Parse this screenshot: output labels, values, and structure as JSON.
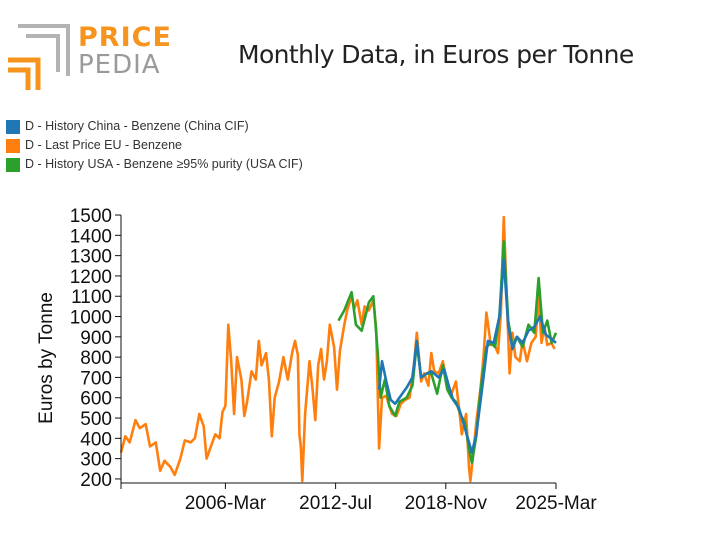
{
  "logo": {
    "word1": "PRICE",
    "word2": "PEDIA",
    "icon": "pricepedia-logo-icon"
  },
  "title": "Monthly Data, in Euros per Tonne",
  "colors": {
    "china": "#1f77b4",
    "eu": "#ff7f0e",
    "usa": "#2ca02c",
    "logo_orange": "#f7941d",
    "logo_gray": "#b3b3b3"
  },
  "legend": [
    {
      "label": "D - History China - Benzene (China CIF)",
      "color": "#1f77b4"
    },
    {
      "label": "D - Last Price EU - Benzene",
      "color": "#ff7f0e"
    },
    {
      "label": "D - History USA - Benzene ≥95% purity (USA CIF)",
      "color": "#2ca02c"
    }
  ],
  "chart_data": {
    "type": "line",
    "ylabel": "Euros by Tonne",
    "xlabel": "",
    "ylim": [
      180,
      1510
    ],
    "xlim": [
      "2000-03",
      "2025-03"
    ],
    "x_ticks": [
      "2006-Mar",
      "2012-Jul",
      "2018-Nov",
      "2025-Mar"
    ],
    "y_ticks": [
      200,
      300,
      400,
      500,
      600,
      700,
      800,
      900,
      1000,
      1100,
      1200,
      1300,
      1400,
      1500
    ],
    "grid": false,
    "legend_position": "top-left",
    "series": [
      {
        "name": "D - Last Price EU - Benzene",
        "color": "#ff7f0e",
        "points": [
          [
            "2000-03",
            330
          ],
          [
            "2000-06",
            410
          ],
          [
            "2000-09",
            380
          ],
          [
            "2001-01",
            490
          ],
          [
            "2001-04",
            450
          ],
          [
            "2001-08",
            470
          ],
          [
            "2001-11",
            360
          ],
          [
            "2002-03",
            380
          ],
          [
            "2002-06",
            240
          ],
          [
            "2002-09",
            290
          ],
          [
            "2003-01",
            260
          ],
          [
            "2003-04",
            220
          ],
          [
            "2003-08",
            300
          ],
          [
            "2003-11",
            390
          ],
          [
            "2004-03",
            380
          ],
          [
            "2004-06",
            400
          ],
          [
            "2004-09",
            520
          ],
          [
            "2004-12",
            460
          ],
          [
            "2005-02",
            300
          ],
          [
            "2005-05",
            360
          ],
          [
            "2005-08",
            420
          ],
          [
            "2005-11",
            400
          ],
          [
            "2006-01",
            530
          ],
          [
            "2006-03",
            560
          ],
          [
            "2006-05",
            960
          ],
          [
            "2006-07",
            780
          ],
          [
            "2006-09",
            520
          ],
          [
            "2006-11",
            800
          ],
          [
            "2007-02",
            690
          ],
          [
            "2007-04",
            510
          ],
          [
            "2007-06",
            580
          ],
          [
            "2007-09",
            730
          ],
          [
            "2007-12",
            690
          ],
          [
            "2008-02",
            880
          ],
          [
            "2008-04",
            760
          ],
          [
            "2008-07",
            820
          ],
          [
            "2008-09",
            690
          ],
          [
            "2008-11",
            410
          ],
          [
            "2009-01",
            600
          ],
          [
            "2009-04",
            680
          ],
          [
            "2009-07",
            800
          ],
          [
            "2009-10",
            690
          ],
          [
            "2010-01",
            820
          ],
          [
            "2010-03",
            880
          ],
          [
            "2010-05",
            810
          ],
          [
            "2010-06",
            420
          ],
          [
            "2010-07",
            360
          ],
          [
            "2010-08",
            190
          ],
          [
            "2010-10",
            520
          ],
          [
            "2011-01",
            780
          ],
          [
            "2011-03",
            650
          ],
          [
            "2011-05",
            490
          ],
          [
            "2011-07",
            760
          ],
          [
            "2011-09",
            840
          ],
          [
            "2011-11",
            690
          ],
          [
            "2012-01",
            780
          ],
          [
            "2012-03",
            960
          ],
          [
            "2012-06",
            850
          ],
          [
            "2012-08",
            640
          ],
          [
            "2012-10",
            830
          ],
          [
            "2013-01",
            960
          ],
          [
            "2013-03",
            1030
          ],
          [
            "2013-06",
            1100
          ],
          [
            "2013-08",
            1040
          ],
          [
            "2013-10",
            1080
          ],
          [
            "2014-01",
            960
          ],
          [
            "2014-03",
            1050
          ],
          [
            "2014-06",
            1030
          ],
          [
            "2014-09",
            1080
          ],
          [
            "2014-11",
            940
          ],
          [
            "2015-01",
            350
          ],
          [
            "2015-03",
            600
          ],
          [
            "2015-06",
            610
          ],
          [
            "2015-08",
            560
          ],
          [
            "2015-10",
            520
          ],
          [
            "2016-01",
            510
          ],
          [
            "2016-04",
            570
          ],
          [
            "2016-07",
            590
          ],
          [
            "2016-10",
            600
          ],
          [
            "2017-01",
            760
          ],
          [
            "2017-03",
            920
          ],
          [
            "2017-06",
            680
          ],
          [
            "2017-08",
            720
          ],
          [
            "2017-11",
            660
          ],
          [
            "2018-01",
            820
          ],
          [
            "2018-03",
            730
          ],
          [
            "2018-06",
            720
          ],
          [
            "2018-09",
            780
          ],
          [
            "2018-12",
            660
          ],
          [
            "2019-03",
            620
          ],
          [
            "2019-06",
            680
          ],
          [
            "2019-08",
            560
          ],
          [
            "2019-10",
            420
          ],
          [
            "2020-01",
            520
          ],
          [
            "2020-03",
            260
          ],
          [
            "2020-04",
            190
          ],
          [
            "2020-06",
            330
          ],
          [
            "2020-08",
            480
          ],
          [
            "2020-11",
            650
          ],
          [
            "2021-01",
            800
          ],
          [
            "2021-03",
            1020
          ],
          [
            "2021-06",
            860
          ],
          [
            "2021-08",
            870
          ],
          [
            "2021-11",
            820
          ],
          [
            "2022-01",
            1020
          ],
          [
            "2022-03",
            1490
          ],
          [
            "2022-05",
            1100
          ],
          [
            "2022-07",
            720
          ],
          [
            "2022-09",
            920
          ],
          [
            "2022-11",
            800
          ],
          [
            "2023-02",
            780
          ],
          [
            "2023-04",
            880
          ],
          [
            "2023-07",
            780
          ],
          [
            "2023-10",
            870
          ],
          [
            "2024-01",
            900
          ],
          [
            "2024-03",
            1100
          ],
          [
            "2024-05",
            870
          ],
          [
            "2024-07",
            950
          ],
          [
            "2024-09",
            860
          ],
          [
            "2024-12",
            870
          ],
          [
            "2025-02",
            840
          ]
        ]
      },
      {
        "name": "D - History USA - Benzene ≥95% purity (USA CIF)",
        "color": "#2ca02c",
        "points": [
          [
            "2012-09",
            980
          ],
          [
            "2013-01",
            1030
          ],
          [
            "2013-06",
            1120
          ],
          [
            "2013-09",
            960
          ],
          [
            "2014-01",
            930
          ],
          [
            "2014-06",
            1070
          ],
          [
            "2014-09",
            1100
          ],
          [
            "2014-12",
            830
          ],
          [
            "2015-02",
            600
          ],
          [
            "2015-05",
            690
          ],
          [
            "2015-08",
            560
          ],
          [
            "2015-12",
            510
          ],
          [
            "2016-03",
            580
          ],
          [
            "2016-08",
            600
          ],
          [
            "2016-12",
            660
          ],
          [
            "2017-03",
            870
          ],
          [
            "2017-06",
            700
          ],
          [
            "2017-10",
            720
          ],
          [
            "2018-01",
            720
          ],
          [
            "2018-05",
            620
          ],
          [
            "2018-09",
            760
          ],
          [
            "2018-12",
            640
          ],
          [
            "2019-03",
            600
          ],
          [
            "2019-06",
            580
          ],
          [
            "2019-09",
            520
          ],
          [
            "2019-12",
            480
          ],
          [
            "2020-03",
            350
          ],
          [
            "2020-05",
            280
          ],
          [
            "2020-08",
            410
          ],
          [
            "2020-11",
            640
          ],
          [
            "2021-03",
            850
          ],
          [
            "2021-06",
            870
          ],
          [
            "2021-09",
            850
          ],
          [
            "2021-12",
            1000
          ],
          [
            "2022-03",
            1370
          ],
          [
            "2022-06",
            980
          ],
          [
            "2022-09",
            850
          ],
          [
            "2022-12",
            900
          ],
          [
            "2023-04",
            850
          ],
          [
            "2023-08",
            960
          ],
          [
            "2023-12",
            920
          ],
          [
            "2024-03",
            1190
          ],
          [
            "2024-06",
            920
          ],
          [
            "2024-09",
            980
          ],
          [
            "2024-12",
            870
          ],
          [
            "2025-03",
            920
          ]
        ]
      },
      {
        "name": "D - History China - Benzene (China CIF)",
        "color": "#1f77b4",
        "points": [
          [
            "2015-01",
            640
          ],
          [
            "2015-03",
            780
          ],
          [
            "2015-06",
            680
          ],
          [
            "2015-09",
            590
          ],
          [
            "2015-12",
            570
          ],
          [
            "2016-04",
            610
          ],
          [
            "2016-08",
            650
          ],
          [
            "2016-12",
            700
          ],
          [
            "2017-03",
            880
          ],
          [
            "2017-06",
            700
          ],
          [
            "2017-10",
            720
          ],
          [
            "2018-01",
            730
          ],
          [
            "2018-06",
            700
          ],
          [
            "2018-10",
            740
          ],
          [
            "2019-01",
            660
          ],
          [
            "2019-04",
            590
          ],
          [
            "2019-08",
            550
          ],
          [
            "2019-11",
            480
          ],
          [
            "2020-03",
            380
          ],
          [
            "2020-05",
            330
          ],
          [
            "2020-08",
            420
          ],
          [
            "2020-12",
            640
          ],
          [
            "2021-04",
            880
          ],
          [
            "2021-08",
            870
          ],
          [
            "2021-12",
            1000
          ],
          [
            "2022-03",
            1280
          ],
          [
            "2022-06",
            960
          ],
          [
            "2022-09",
            840
          ],
          [
            "2022-12",
            900
          ],
          [
            "2023-04",
            870
          ],
          [
            "2023-08",
            930
          ],
          [
            "2023-12",
            950
          ],
          [
            "2024-04",
            1000
          ],
          [
            "2024-08",
            910
          ],
          [
            "2024-12",
            890
          ],
          [
            "2025-03",
            870
          ]
        ]
      }
    ]
  }
}
